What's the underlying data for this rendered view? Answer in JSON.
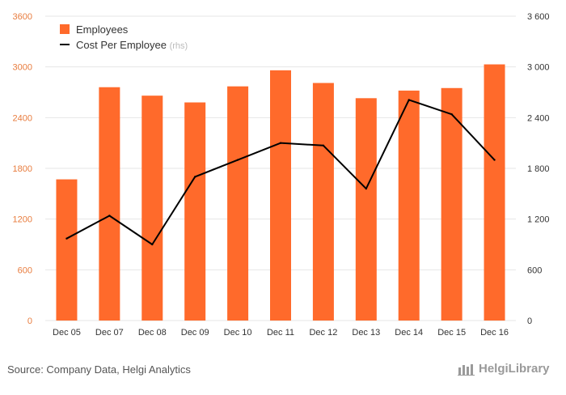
{
  "chart_data": {
    "type": "bar",
    "categories": [
      "Dec 05",
      "Dec 07",
      "Dec 08",
      "Dec 09",
      "Dec 10",
      "Dec 11",
      "Dec 12",
      "Dec 13",
      "Dec 14",
      "Dec 15",
      "Dec 16"
    ],
    "series": [
      {
        "name": "Employees",
        "type": "bar",
        "axis": "left",
        "color": "#ff6a2b",
        "values": [
          1670,
          2760,
          2660,
          2580,
          2770,
          2960,
          2810,
          2630,
          2720,
          2750,
          3030
        ]
      },
      {
        "name": "Cost Per Employee",
        "type": "line",
        "axis": "right",
        "color": "#000000",
        "values": [
          970,
          1240,
          900,
          1700,
          1900,
          2100,
          2070,
          1560,
          2610,
          2440,
          1900
        ]
      }
    ],
    "ylim_left": [
      0,
      3600
    ],
    "ylim_right": [
      0,
      3600
    ],
    "yticks_left": [
      "0",
      "600",
      "1200",
      "1800",
      "2400",
      "3000",
      "3600"
    ],
    "yticks_right": [
      "0",
      "600",
      "1 200",
      "1 800",
      "2 400",
      "3 000",
      "3 600"
    ],
    "legend": {
      "placement": "top-left",
      "items": [
        {
          "label": "Employees",
          "suffix": ""
        },
        {
          "label": "Cost Per Employee",
          "suffix": "(rhs)"
        }
      ]
    },
    "grid": true,
    "colors": {
      "bar": "#ff6a2b",
      "line": "#000000",
      "left_tick": "#e87c3e",
      "right_tick": "#333333",
      "grid": "#e6e6e6"
    }
  },
  "footer": {
    "source": "Source: Company Data, Helgi Analytics",
    "brand": "HelgiLibrary"
  }
}
